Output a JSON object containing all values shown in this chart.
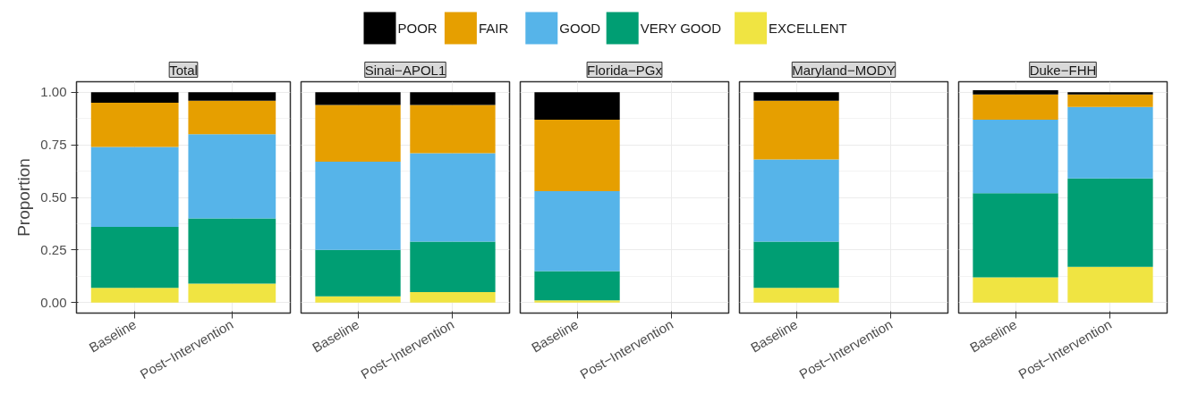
{
  "chart_data": [
    {
      "type": "bar",
      "title": "Total",
      "ylabel": "Proportion",
      "categories": [
        "Baseline",
        "Post−Intervention"
      ],
      "stacked": true,
      "ylim": [
        -0.05,
        1.05
      ],
      "yticks": [
        {
          "value": 0,
          "label": "0.00"
        },
        {
          "value": 0.25,
          "label": "0.25"
        },
        {
          "value": 0.5,
          "label": "0.50"
        },
        {
          "value": 0.75,
          "label": "0.75"
        },
        {
          "value": 1,
          "label": "1.00"
        }
      ],
      "grid": true,
      "legend": "top",
      "series": [
        {
          "name": "EXCELLENT",
          "color": "#f0e442",
          "values": [
            0.07,
            0.09
          ]
        },
        {
          "name": "VERY GOOD",
          "color": "#009e73",
          "values": [
            0.29,
            0.31
          ]
        },
        {
          "name": "GOOD",
          "color": "#56b4e9",
          "values": [
            0.38,
            0.4
          ]
        },
        {
          "name": "FAIR",
          "color": "#e69f00",
          "values": [
            0.21,
            0.16
          ]
        },
        {
          "name": "POOR",
          "color": "#000000",
          "values": [
            0.05,
            0.04
          ]
        }
      ]
    },
    {
      "type": "bar",
      "title": "Sinai−APOL1",
      "categories": [
        "Baseline",
        "Post−Intervention"
      ],
      "stacked": true,
      "ylim": [
        -0.05,
        1.05
      ],
      "yticks": [
        {
          "value": 0,
          "label": null
        },
        {
          "value": 0.25,
          "label": null
        },
        {
          "value": 0.5,
          "label": null
        },
        {
          "value": 0.75,
          "label": null
        },
        {
          "value": 1,
          "label": null
        }
      ],
      "grid": true,
      "tick_labels": "x",
      "series": [
        {
          "color": "#f0e442",
          "values": [
            0.03,
            0.05
          ]
        },
        {
          "color": "#009e73",
          "values": [
            0.22,
            0.24
          ]
        },
        {
          "color": "#56b4e9",
          "values": [
            0.42,
            0.42
          ]
        },
        {
          "color": "#e69f00",
          "values": [
            0.27,
            0.23
          ]
        },
        {
          "color": "#000000",
          "values": [
            0.06,
            0.06
          ]
        }
      ]
    },
    {
      "type": "bar",
      "title": "Florida−PGx",
      "categories": [
        "Baseline",
        "Post−Intervention"
      ],
      "stacked": true,
      "ylim": [
        -0.05,
        1.05
      ],
      "yticks": [
        {
          "value": 0,
          "label": null
        },
        {
          "value": 0.25,
          "label": null
        },
        {
          "value": 0.5,
          "label": null
        },
        {
          "value": 0.75,
          "label": null
        },
        {
          "value": 1,
          "label": null
        }
      ],
      "grid": true,
      "tick_labels": "x",
      "series": [
        {
          "color": "#f0e442",
          "values": [
            0.01,
            null
          ]
        },
        {
          "color": "#009e73",
          "values": [
            0.14,
            null
          ]
        },
        {
          "color": "#56b4e9",
          "values": [
            0.38,
            null
          ]
        },
        {
          "color": "#e69f00",
          "values": [
            0.34,
            null
          ]
        },
        {
          "color": "#000000",
          "values": [
            0.13,
            null
          ]
        }
      ]
    },
    {
      "type": "bar",
      "title": "Maryland−MODY",
      "categories": [
        "Baseline",
        "Post−Intervention"
      ],
      "stacked": true,
      "ylim": [
        -0.05,
        1.05
      ],
      "yticks": [
        {
          "value": 0,
          "label": null
        },
        {
          "value": 0.25,
          "label": null
        },
        {
          "value": 0.5,
          "label": null
        },
        {
          "value": 0.75,
          "label": null
        },
        {
          "value": 1,
          "label": null
        }
      ],
      "grid": true,
      "tick_labels": "x",
      "series": [
        {
          "color": "#f0e442",
          "values": [
            0.07,
            null
          ]
        },
        {
          "color": "#009e73",
          "values": [
            0.22,
            null
          ]
        },
        {
          "color": "#56b4e9",
          "values": [
            0.39,
            null
          ]
        },
        {
          "color": "#e69f00",
          "values": [
            0.28,
            null
          ]
        },
        {
          "color": "#000000",
          "values": [
            0.04,
            null
          ]
        }
      ]
    },
    {
      "type": "bar",
      "title": "Duke−FHH",
      "categories": [
        "Baseline",
        "Post−Intervention"
      ],
      "stacked": true,
      "ylim": [
        -0.05,
        1.05
      ],
      "yticks": [
        {
          "value": 0,
          "label": null
        },
        {
          "value": 0.25,
          "label": null
        },
        {
          "value": 0.5,
          "label": null
        },
        {
          "value": 0.75,
          "label": null
        },
        {
          "value": 1,
          "label": null
        }
      ],
      "grid": true,
      "tick_labels": "x",
      "series": [
        {
          "color": "#f0e442",
          "values": [
            0.12,
            0.17
          ]
        },
        {
          "color": "#009e73",
          "values": [
            0.4,
            0.42
          ]
        },
        {
          "color": "#56b4e9",
          "values": [
            0.35,
            0.34
          ]
        },
        {
          "color": "#e69f00",
          "values": [
            0.12,
            0.06
          ]
        },
        {
          "color": "#000000",
          "values": [
            0.02,
            0.01
          ]
        }
      ]
    }
  ]
}
